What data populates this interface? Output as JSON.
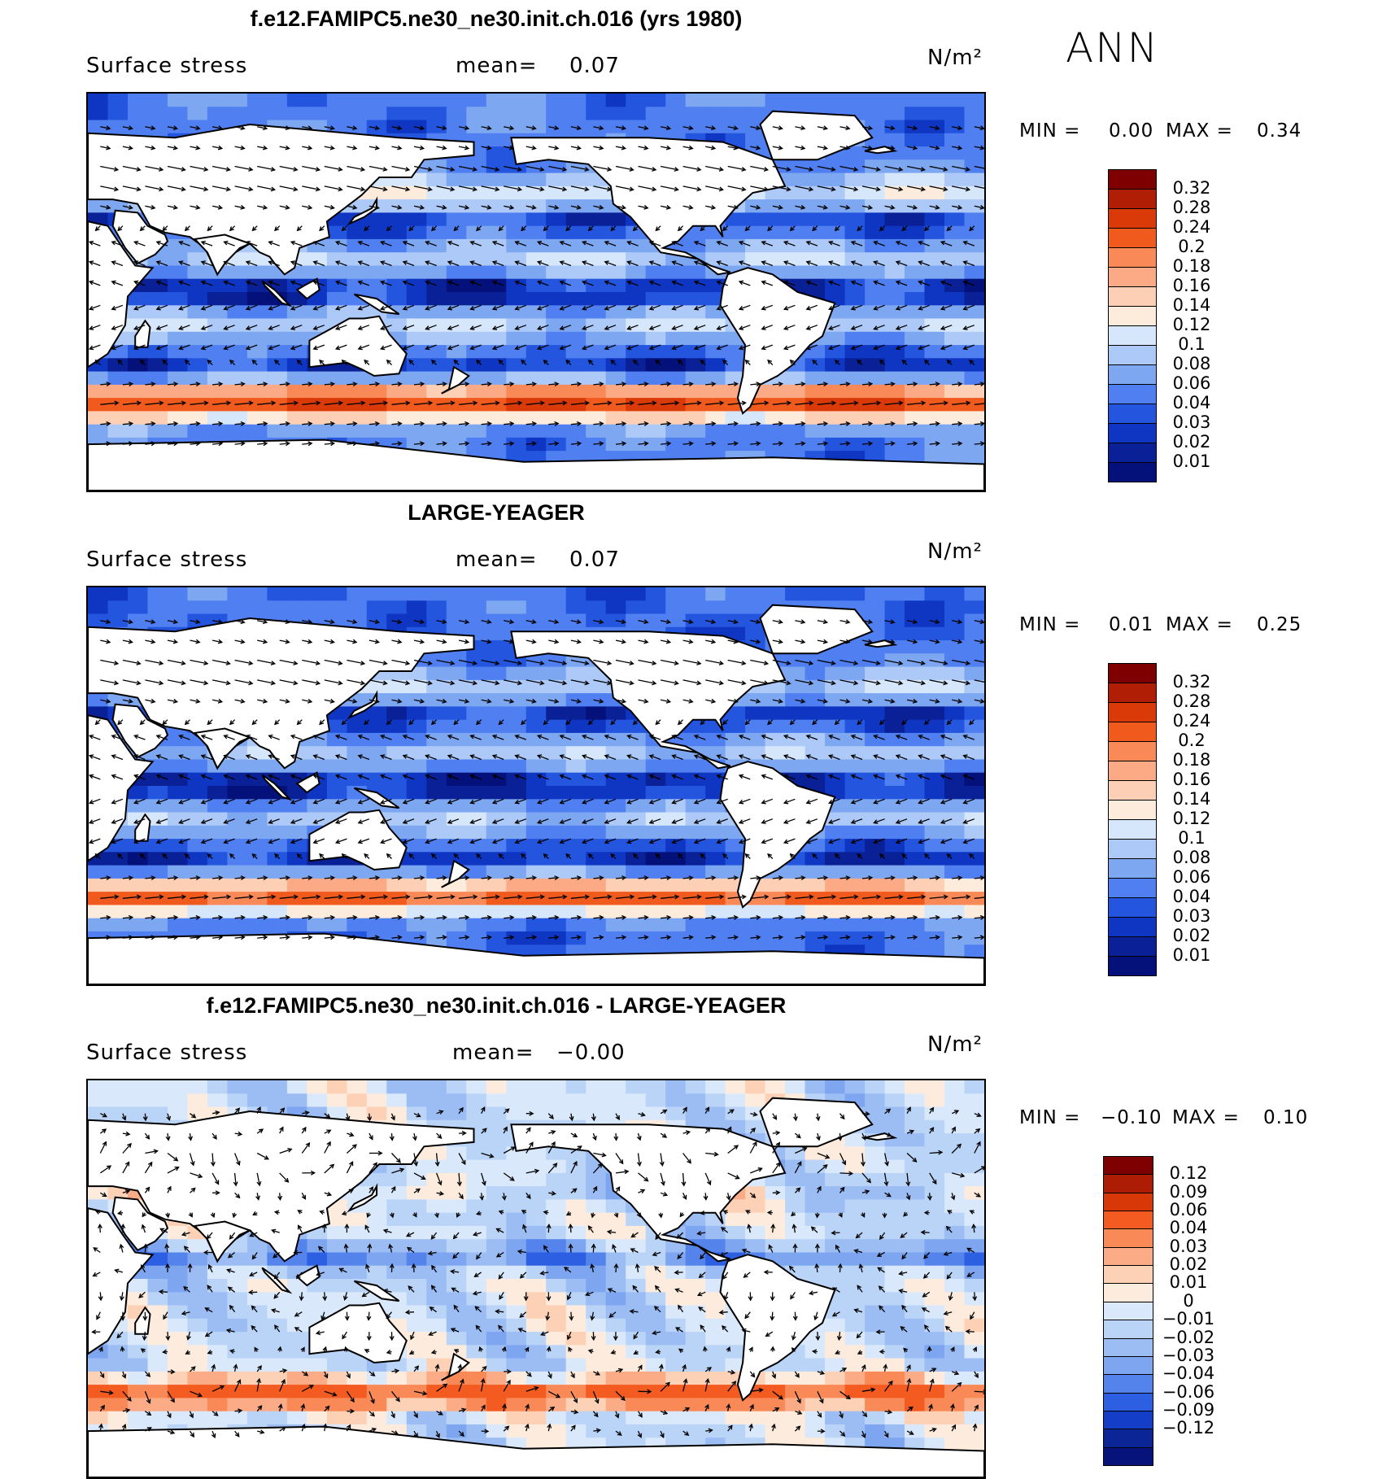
{
  "season": "ANN",
  "panels": [
    {
      "title": "f.e12.FAMIPC5.ne30_ne30.init.ch.016 (yrs 1980)",
      "variable": "Surface stress",
      "mean_label": "mean=",
      "mean_value": "0.07",
      "units": "N/m²",
      "min_label": "MIN =",
      "min_value": "0.00",
      "max_label": "MAX =",
      "max_value": "0.34",
      "palette": "abs",
      "colorbar_labels": [
        "0.32",
        "0.28",
        "0.24",
        "0.2",
        "0.18",
        "0.16",
        "0.14",
        "0.12",
        "0.1",
        "0.08",
        "0.06",
        "0.04",
        "0.03",
        "0.02",
        "0.01"
      ]
    },
    {
      "title": "LARGE-YEAGER",
      "variable": "Surface stress",
      "mean_label": "mean=",
      "mean_value": "0.07",
      "units": "N/m²",
      "min_label": "MIN =",
      "min_value": "0.01",
      "max_label": "MAX =",
      "max_value": "0.25",
      "palette": "abs",
      "colorbar_labels": [
        "0.32",
        "0.28",
        "0.24",
        "0.2",
        "0.18",
        "0.16",
        "0.14",
        "0.12",
        "0.1",
        "0.08",
        "0.06",
        "0.04",
        "0.03",
        "0.02",
        "0.01"
      ]
    },
    {
      "title": "f.e12.FAMIPC5.ne30_ne30.init.ch.016 - LARGE-YEAGER",
      "variable": "Surface stress",
      "mean_label": "mean=",
      "mean_value": "−0.00",
      "units": "N/m²",
      "min_label": "MIN =",
      "min_value": "−0.10",
      "max_label": "MAX =",
      "max_value": "0.10",
      "palette": "diff",
      "colorbar_labels": [
        "0.12",
        "0.09",
        "0.06",
        "0.04",
        "0.03",
        "0.02",
        "0.01",
        "0",
        "−0.01",
        "−0.02",
        "−0.03",
        "−0.04",
        "−0.06",
        "−0.09",
        "−0.12"
      ]
    }
  ],
  "palettes": {
    "abs": [
      "#7f0000",
      "#b01e05",
      "#d93a07",
      "#f05a1d",
      "#f98a58",
      "#fbaa85",
      "#fdd0b5",
      "#fdebdb",
      "#d6e7fb",
      "#acc9f7",
      "#7ea7f2",
      "#4f7ff0",
      "#2355df",
      "#0e36c3",
      "#0a2096",
      "#05117a"
    ],
    "diff": [
      "#7f0000",
      "#ad1c05",
      "#d83808",
      "#f35b20",
      "#f98a58",
      "#fbab86",
      "#fdd1b6",
      "#fdecdd",
      "#d9e8fb",
      "#bad4f8",
      "#9cbcf4",
      "#7ea5f0",
      "#5483ec",
      "#2d5fe3",
      "#143ec8",
      "#0b2597",
      "#05137a"
    ]
  },
  "chart_data": [
    {
      "type": "heatmap",
      "title": "f.e12.FAMIPC5.ne30_ne30.init.ch.016 (yrs 1980)",
      "variable": "Surface stress",
      "units": "N/m²",
      "mean": 0.07,
      "min": 0.0,
      "max": 0.34,
      "levels": [
        0.01,
        0.02,
        0.03,
        0.04,
        0.06,
        0.08,
        0.1,
        0.12,
        0.14,
        0.16,
        0.18,
        0.2,
        0.24,
        0.28,
        0.32
      ]
    },
    {
      "type": "heatmap",
      "title": "LARGE-YEAGER",
      "variable": "Surface stress",
      "units": "N/m²",
      "mean": 0.07,
      "min": 0.01,
      "max": 0.25,
      "levels": [
        0.01,
        0.02,
        0.03,
        0.04,
        0.06,
        0.08,
        0.1,
        0.12,
        0.14,
        0.16,
        0.18,
        0.2,
        0.24,
        0.28,
        0.32
      ]
    },
    {
      "type": "heatmap",
      "title": "f.e12.FAMIPC5.ne30_ne30.init.ch.016 - LARGE-YEAGER",
      "variable": "Surface stress",
      "units": "N/m²",
      "mean": -0.0,
      "min": -0.1,
      "max": 0.1,
      "levels": [
        -0.12,
        -0.09,
        -0.06,
        -0.04,
        -0.03,
        -0.02,
        -0.01,
        0,
        0.01,
        0.02,
        0.03,
        0.04,
        0.06,
        0.09,
        0.12
      ]
    }
  ]
}
